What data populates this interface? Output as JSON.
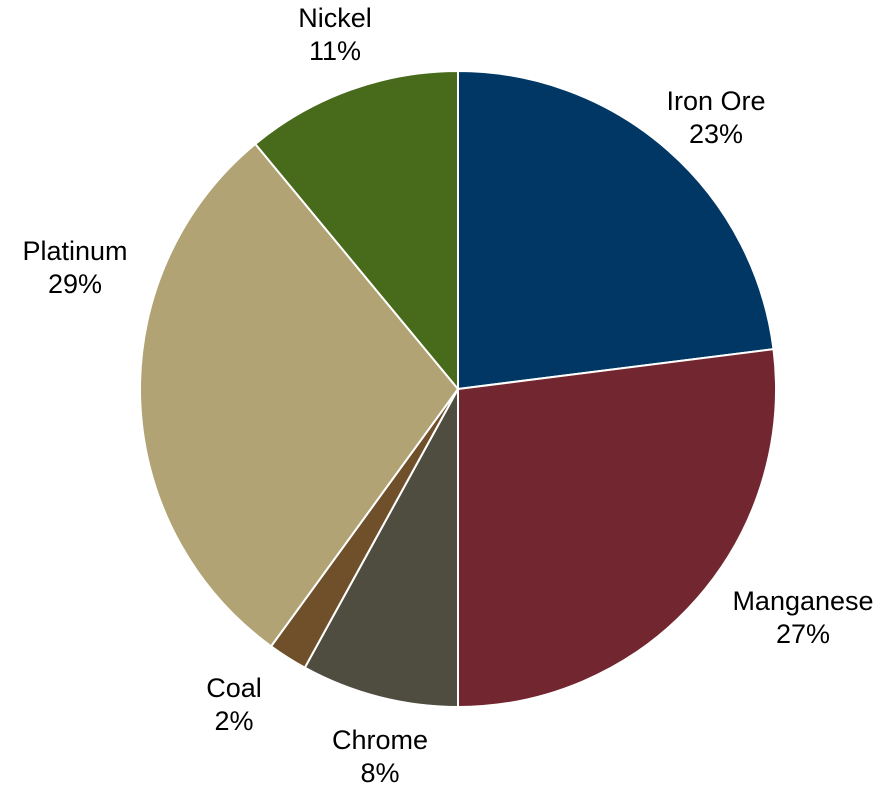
{
  "chart_data": {
    "type": "pie",
    "title": "",
    "slices": [
      {
        "label": "Iron Ore",
        "percent_label": "23%",
        "value": 23,
        "color": "#003764"
      },
      {
        "label": "Manganese",
        "percent_label": "27%",
        "value": 27,
        "color": "#722630"
      },
      {
        "label": "Chrome",
        "percent_label": "8%",
        "value": 8,
        "color": "#4F4D40"
      },
      {
        "label": "Coal",
        "percent_label": "2%",
        "value": 2,
        "color": "#6F502A"
      },
      {
        "label": "Platinum",
        "percent_label": "29%",
        "value": 29,
        "color": "#B1A374"
      },
      {
        "label": "Nickel",
        "percent_label": "11%",
        "value": 11,
        "color": "#476A1B"
      }
    ],
    "start_angle": "12 o'clock",
    "direction": "clockwise",
    "legend": "none",
    "data_labels": "outside"
  }
}
